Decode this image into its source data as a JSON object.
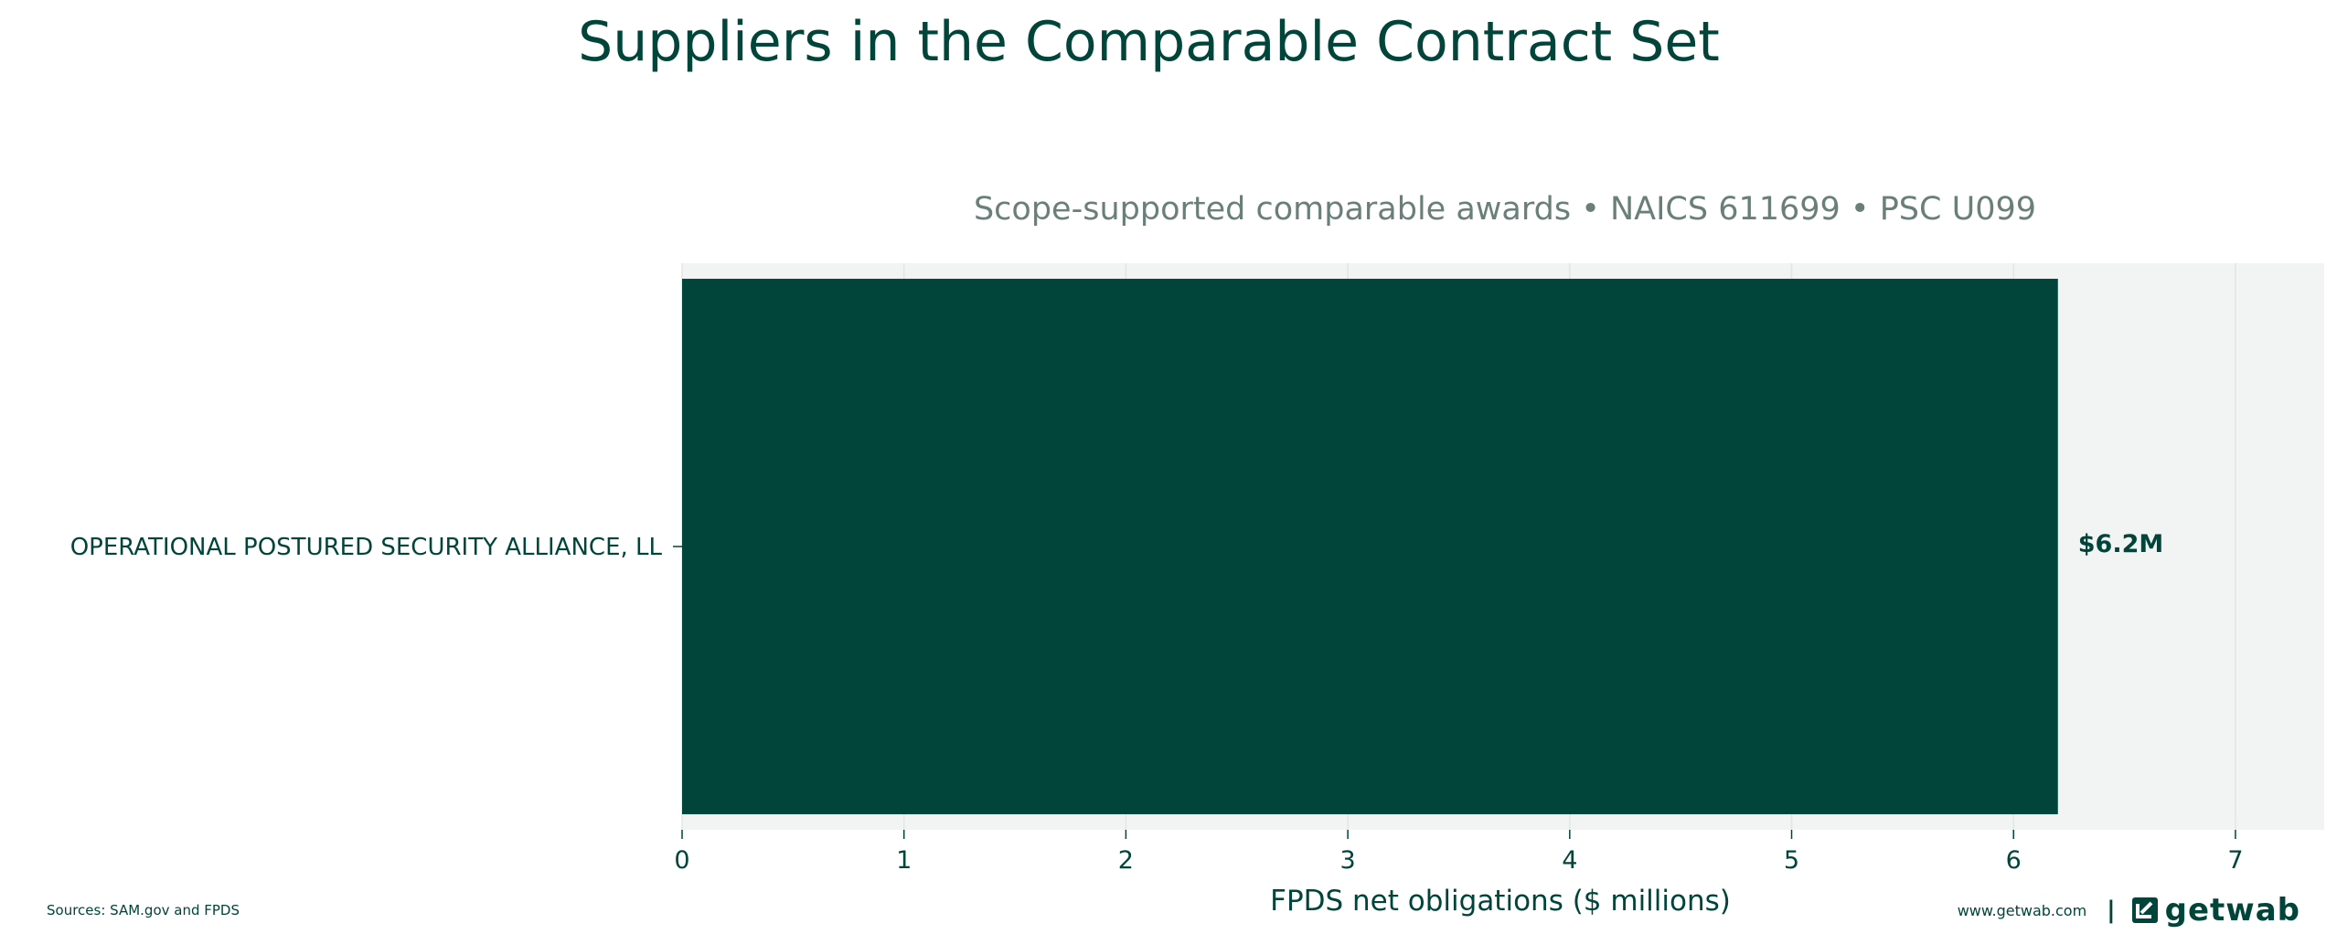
{
  "title": "Suppliers in the Comparable Contract Set",
  "subtitle": "Scope-supported comparable awards • NAICS 611699 • PSC U099",
  "footer": {
    "sources": "Sources: SAM.gov and FPDS",
    "site": "www.getwab.com",
    "separator": "|",
    "logo_text": "getwab"
  },
  "colors": {
    "bar": "#00443a",
    "plot_bg": "#f2f4f3",
    "grid": "#e1e6e4",
    "text": "#00443a"
  },
  "chart_data": {
    "type": "bar",
    "orientation": "horizontal",
    "categories": [
      "OPERATIONAL POSTURED SECURITY ALLIANCE, LL"
    ],
    "values": [
      6.2
    ],
    "value_labels": [
      "$6.2M"
    ],
    "xlabel": "FPDS net obligations ($ millions)",
    "ylabel": "",
    "xlim": [
      0,
      7.4
    ],
    "xticks": [
      0,
      1,
      2,
      3,
      4,
      5,
      6,
      7
    ],
    "grid": "vertical"
  }
}
